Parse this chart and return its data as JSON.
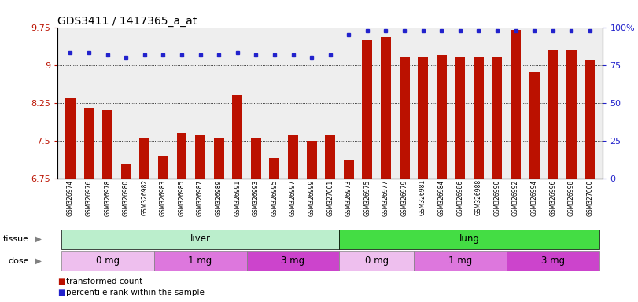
{
  "title": "GDS3411 / 1417365_a_at",
  "samples": [
    "GSM326974",
    "GSM326976",
    "GSM326978",
    "GSM326980",
    "GSM326982",
    "GSM326983",
    "GSM326985",
    "GSM326987",
    "GSM326989",
    "GSM326991",
    "GSM326993",
    "GSM326995",
    "GSM326997",
    "GSM326999",
    "GSM327001",
    "GSM326973",
    "GSM326975",
    "GSM326977",
    "GSM326979",
    "GSM326981",
    "GSM326984",
    "GSM326986",
    "GSM326988",
    "GSM326990",
    "GSM326992",
    "GSM326994",
    "GSM326996",
    "GSM326998",
    "GSM327000"
  ],
  "bar_values": [
    8.35,
    8.15,
    8.1,
    7.05,
    7.55,
    7.2,
    7.65,
    7.6,
    7.55,
    8.4,
    7.55,
    7.15,
    7.6,
    7.5,
    7.6,
    7.1,
    9.5,
    9.55,
    9.15,
    9.15,
    9.2,
    9.15,
    9.15,
    9.15,
    9.7,
    8.85,
    9.3,
    9.3,
    9.1
  ],
  "percentile_values": [
    9.25,
    9.25,
    9.2,
    9.15,
    9.2,
    9.2,
    9.2,
    9.2,
    9.2,
    9.25,
    9.2,
    9.2,
    9.2,
    9.15,
    9.2,
    9.6,
    9.68,
    9.68,
    9.68,
    9.68,
    9.68,
    9.68,
    9.68,
    9.68,
    9.68,
    9.68,
    9.68,
    9.68,
    9.68
  ],
  "ylim_lo": 6.75,
  "ylim_hi": 9.75,
  "yticks": [
    6.75,
    7.5,
    8.25,
    9.0,
    9.75
  ],
  "ytick_labels": [
    "6.75",
    "7.5",
    "8.25",
    "9",
    "9.75"
  ],
  "right_ytick_vals": [
    6.75,
    7.5,
    8.25,
    9.0,
    9.75
  ],
  "right_ytick_labels": [
    "0",
    "25",
    "50",
    "75",
    "100%"
  ],
  "bar_color": "#BB1100",
  "dot_color": "#2222CC",
  "tissue_groups": [
    {
      "label": "liver",
      "start": 0,
      "end": 15,
      "color": "#BBEECC"
    },
    {
      "label": "lung",
      "start": 15,
      "end": 29,
      "color": "#44DD44"
    }
  ],
  "dose_groups": [
    {
      "label": "0 mg",
      "start": 0,
      "end": 5,
      "color": "#EEBFEE"
    },
    {
      "label": "1 mg",
      "start": 5,
      "end": 10,
      "color": "#DD77DD"
    },
    {
      "label": "3 mg",
      "start": 10,
      "end": 15,
      "color": "#CC44CC"
    },
    {
      "label": "0 mg",
      "start": 15,
      "end": 19,
      "color": "#EEBFEE"
    },
    {
      "label": "1 mg",
      "start": 19,
      "end": 24,
      "color": "#DD77DD"
    },
    {
      "label": "3 mg",
      "start": 24,
      "end": 29,
      "color": "#CC44CC"
    }
  ],
  "legend_items": [
    {
      "label": "transformed count",
      "color": "#BB1100"
    },
    {
      "label": "percentile rank within the sample",
      "color": "#2222CC"
    }
  ],
  "title_fontsize": 10,
  "bar_width": 0.55
}
